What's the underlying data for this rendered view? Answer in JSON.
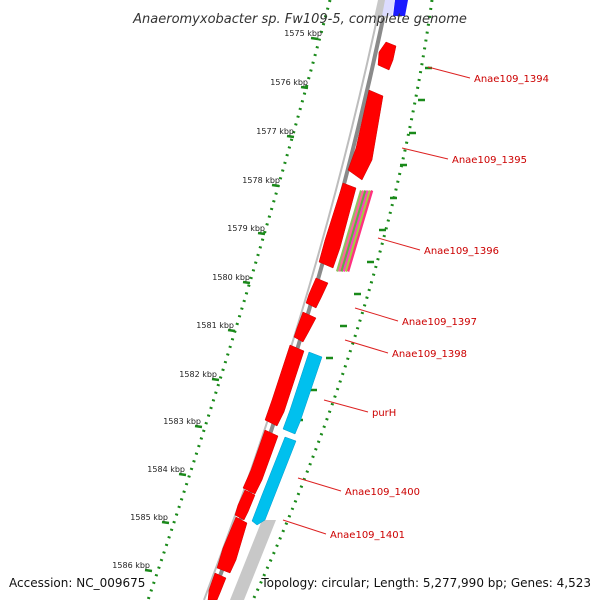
{
  "title": "Anaeromyxobacter sp. Fw109-5, complete genome",
  "accession": "Accession: NC_009675",
  "topology": "Topology: circular; Length: 5,277,990 bp; Genes: 4,523",
  "colors": {
    "backbone": "#8a8a8a",
    "forward_gene": "#ff0000",
    "reverse_gene": "#00c0ee",
    "rna_gray": "#c8c8c8",
    "top_blue": "#1a1aff",
    "dotted_track": "#1a8a1a",
    "label": "#cc0000"
  },
  "ruler": [
    {
      "label": "1575 kbp"
    },
    {
      "label": "1576 kbp"
    },
    {
      "label": "1577 kbp"
    },
    {
      "label": "1578 kbp"
    },
    {
      "label": "1579 kbp"
    },
    {
      "label": "1580 kbp"
    },
    {
      "label": "1581 kbp"
    },
    {
      "label": "1582 kbp"
    },
    {
      "label": "1583 kbp"
    },
    {
      "label": "1584 kbp"
    },
    {
      "label": "1585 kbp"
    },
    {
      "label": "1586 kbp"
    }
  ],
  "gene_labels": [
    {
      "text": "Anae109_1394"
    },
    {
      "text": "Anae109_1395"
    },
    {
      "text": "Anae109_1396"
    },
    {
      "text": "Anae109_1397"
    },
    {
      "text": "Anae109_1398"
    },
    {
      "text": "purH"
    },
    {
      "text": "Anae109_1400"
    },
    {
      "text": "Anae109_1401"
    }
  ]
}
